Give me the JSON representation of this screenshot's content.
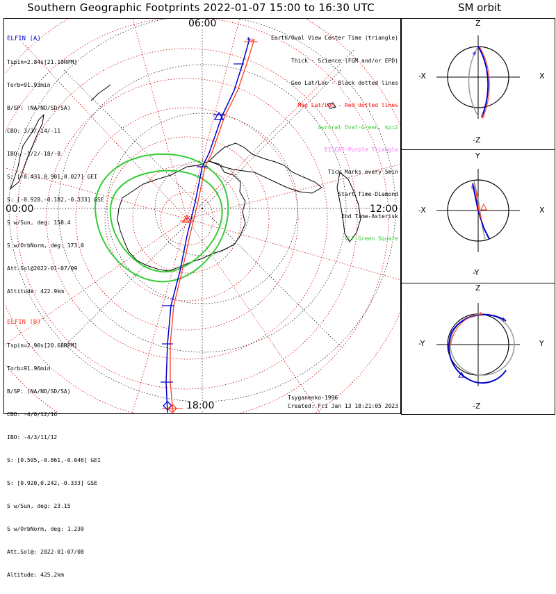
{
  "map_title": "Southern Geographic Footprints 2022-01-07 15:00 to 16:30 UTC",
  "orbit_title": "SM orbit",
  "hours": {
    "top": "06:00",
    "left": "00:00",
    "right": "12:00",
    "bottom": "18:00"
  },
  "elfin_a": {
    "name": "ELFIN (A)",
    "lines": [
      "Tspin=2.84s[21.10RPM]",
      "Torb=91.93min",
      "B/SP: (NA/ND/SD/SA)",
      "CBO: 3/3/-14/-11",
      "IBO: -1/2/-18/-8",
      "S: [-0.431,0.901,0.027] GEI",
      "S: [-0.928,-0.182,-0.333] GSE",
      "S w/Sun, deg: 158.4",
      "S w/OrbNorm, deg: 173.0",
      "Att.Sol@2022-01-07/09",
      "Altitude: 422.9km"
    ]
  },
  "elfin_b": {
    "name": "ELFIN (B)",
    "lines": [
      "Tspin=2.90s[20.68RPM]",
      "Torb=91.96min",
      "B/SP: (NA/ND/SD/SA)",
      "CBO: -4/0/12/16",
      "IBO: -4/3/11/12",
      "S: [0.505,-0.861,-0.046] GEI",
      "S: [0.920,0.242,-0.333] GSE",
      "S w/Sun, deg: 23.15",
      "S w/OrbNorm, deg: 1.230",
      "Att.Sol@: 2022-01-07/08",
      "Altitude: 425.2km"
    ]
  },
  "legend": [
    {
      "text": "Earth/Oval View Center Time (triangle)",
      "color": "#000000"
    },
    {
      "text": "Thick - Science (FGM and/or EPD)",
      "color": "#000000"
    },
    {
      "text": "Geo Lat/Lon - Black dotted lines",
      "color": "#000000"
    },
    {
      "text": "Mag Lat/Lon - Red dotted lines",
      "color": "#ff0000"
    },
    {
      "text": "Auroral Oval-Green, kp=2",
      "color": "#33cc33"
    },
    {
      "text": "EISCAT-Purple Triangle",
      "color": "#ff66ff"
    },
    {
      "text": "Tick Marks every 5min",
      "color": "#000000"
    },
    {
      "text": "Start Time-Diamond",
      "color": "#000000"
    },
    {
      "text": "End Time-Asterisk",
      "color": "#000000"
    },
    {
      "text": "VLF-Green Square",
      "color": "#33cc33"
    }
  ],
  "model": "Tsyganenko-1996",
  "created": "Created: Fri Jan 13 18:21:05 2023",
  "orbit_panels": [
    {
      "top": "Z",
      "bottom": "-Z",
      "left": "-X",
      "right": "X"
    },
    {
      "top": "Y",
      "bottom": "-Y",
      "left": "-X",
      "right": "X"
    },
    {
      "top": "Z",
      "bottom": "-Z",
      "left": "-Y",
      "right": "Y"
    }
  ],
  "colors": {
    "elfin_a": "#0000cc",
    "elfin_b": "#ff3b1f",
    "oval": "#33cc33",
    "mag_grid": "#cc0000",
    "geo_grid": "#000000",
    "orbit_trail": "#999999"
  }
}
